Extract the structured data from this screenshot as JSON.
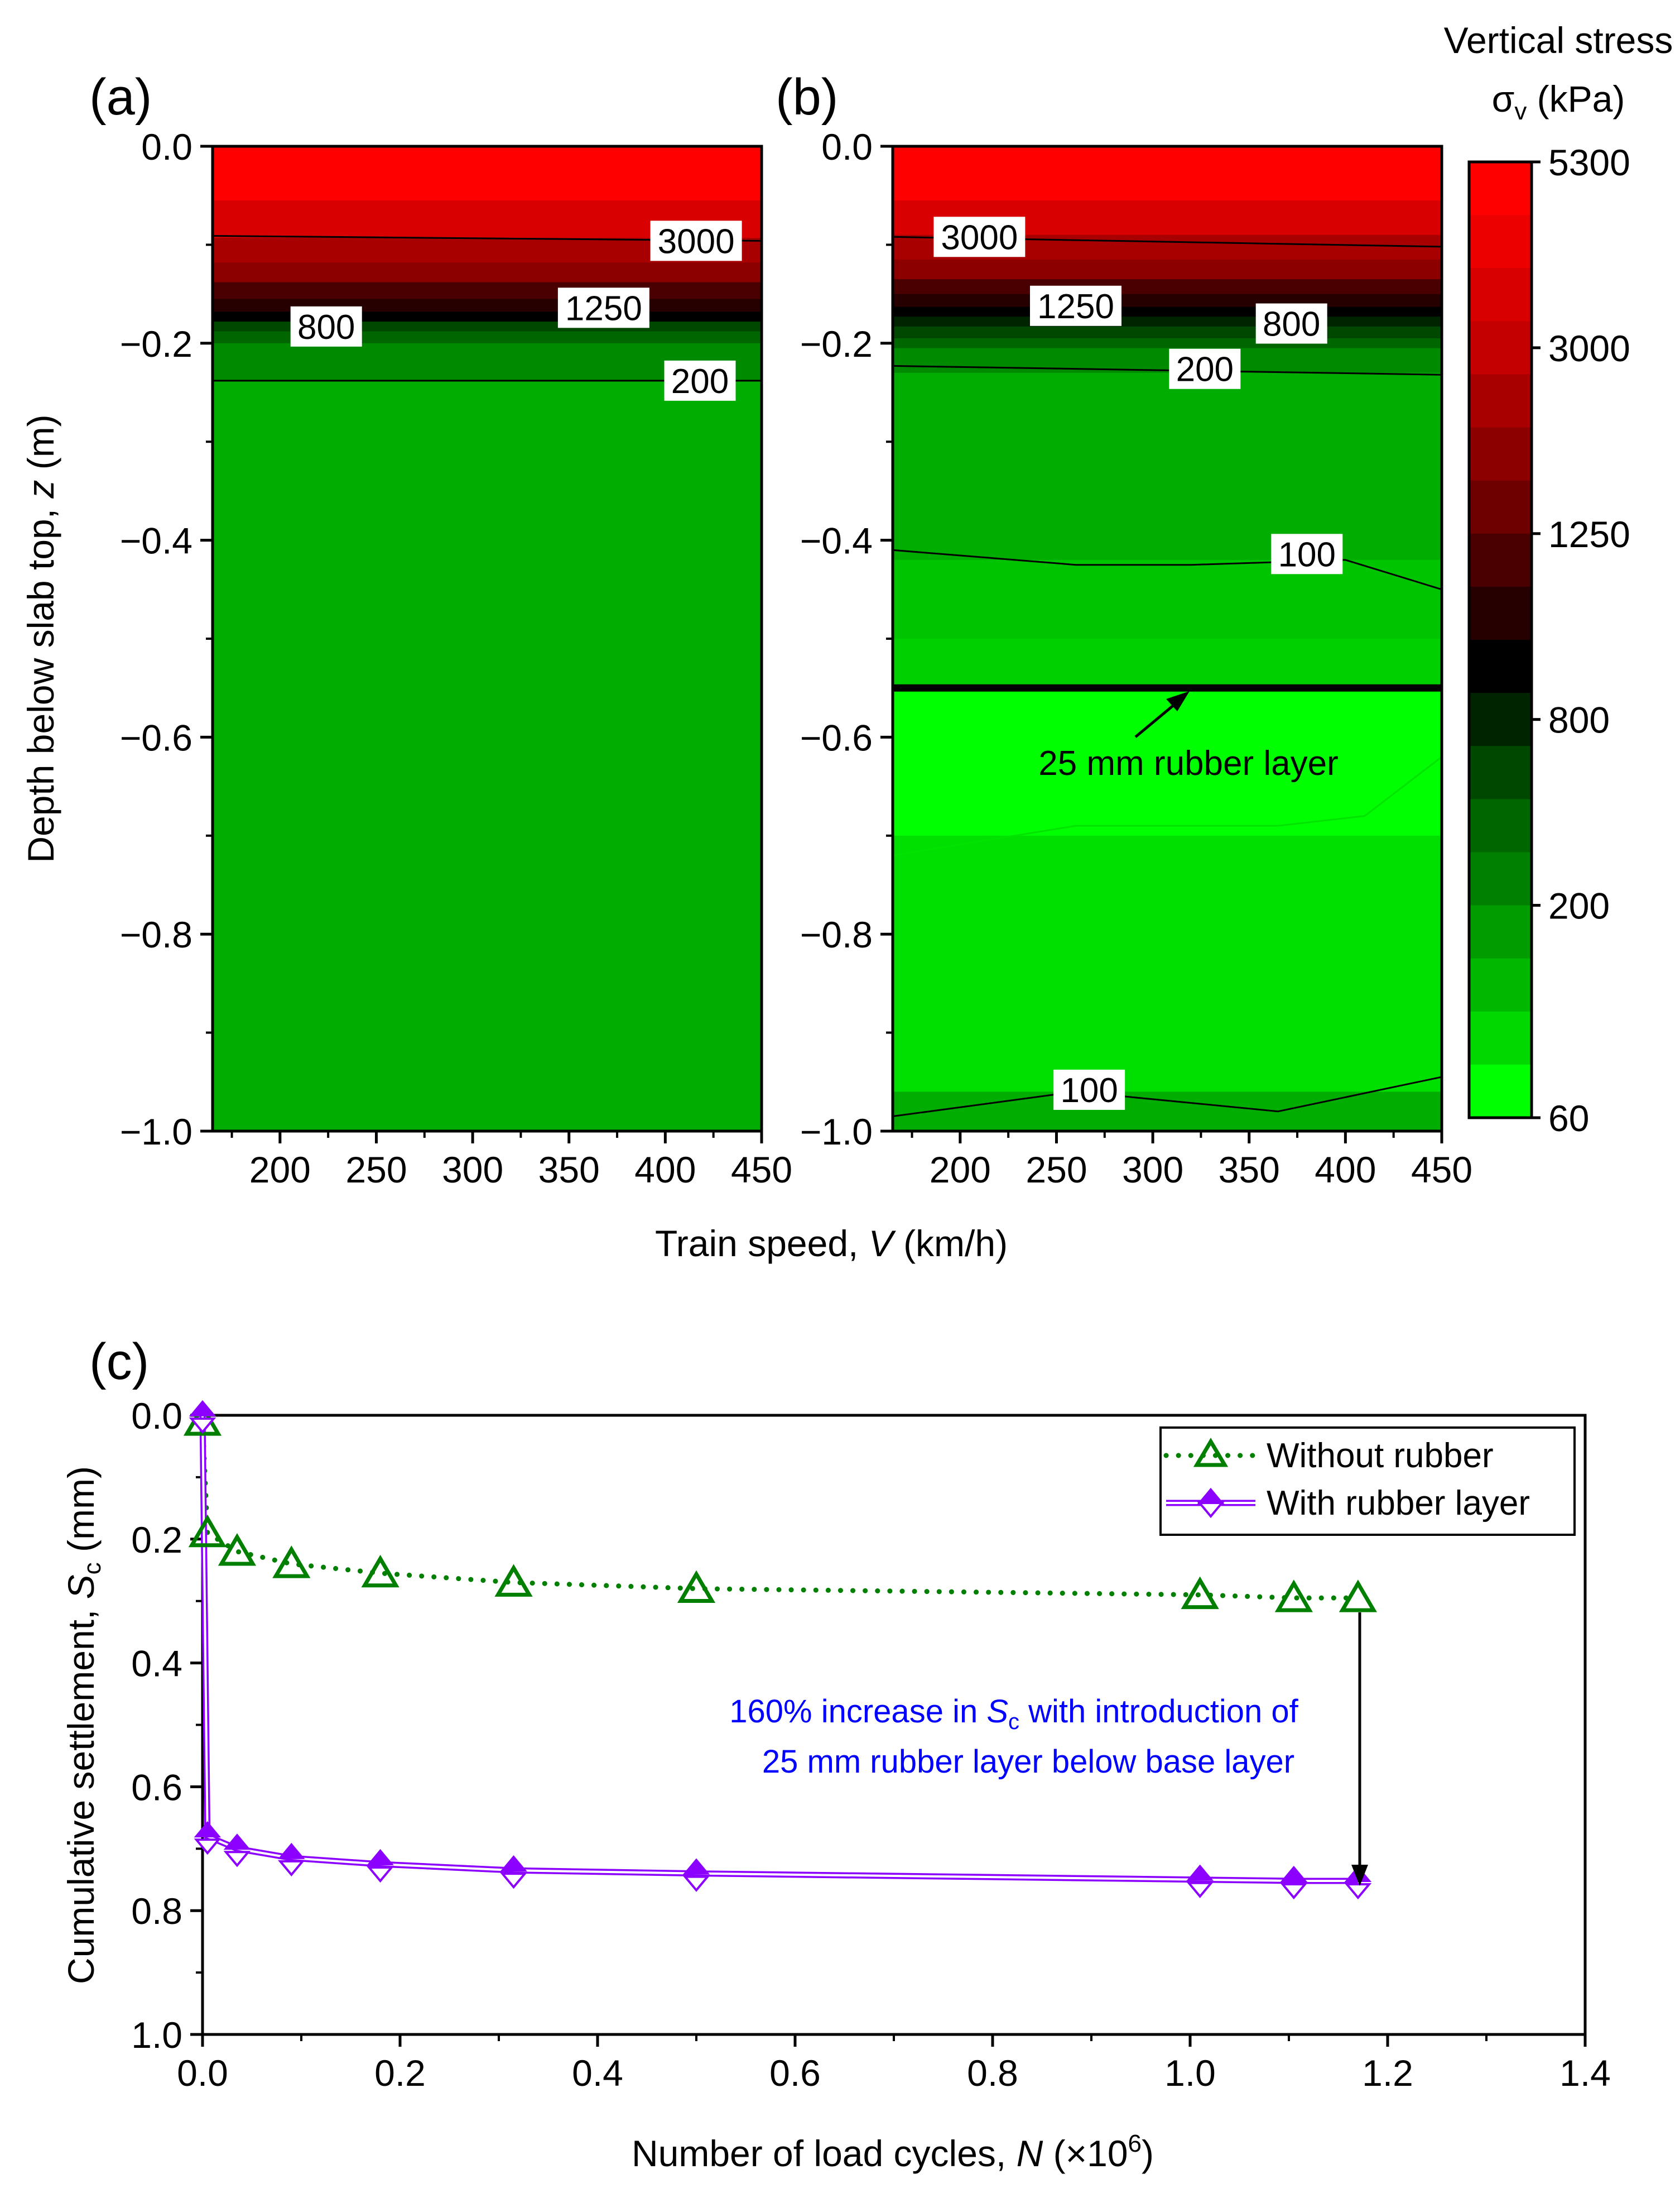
{
  "chart_data": [
    {
      "type": "heatmap",
      "panel_label": "(a)",
      "x": [
        165,
        200,
        250,
        300,
        350,
        400,
        450
      ],
      "xlim": [
        165,
        450
      ],
      "ylim": [
        -1.0,
        0.0
      ],
      "xticks": [
        "200",
        "250",
        "300",
        "350",
        "400",
        "450"
      ],
      "yticks": [
        "0.0",
        "−0.2",
        "−0.4",
        "−0.6",
        "−0.8",
        "−1.0"
      ],
      "ylabel_prefix": "Depth below slab top, ",
      "ylabel_var": "z",
      "ylabel_unit": " (m)",
      "contour_labels": [
        {
          "text": "3000",
          "x": 416,
          "z": -0.096
        },
        {
          "text": "1250",
          "x": 368,
          "z": -0.164
        },
        {
          "text": "800",
          "x": 224,
          "z": -0.183
        },
        {
          "text": "200",
          "x": 418,
          "z": -0.238
        }
      ]
    },
    {
      "type": "heatmap",
      "panel_label": "(b)",
      "x": [
        165,
        200,
        250,
        300,
        350,
        400,
        450
      ],
      "xlim": [
        165,
        450
      ],
      "ylim": [
        -1.0,
        0.0
      ],
      "xticks": [
        "200",
        "250",
        "300",
        "350",
        "400",
        "450"
      ],
      "yticks": [
        "0.0",
        "−0.2",
        "−0.4",
        "−0.6",
        "−0.8",
        "−1.0"
      ],
      "contour_labels": [
        {
          "text": "3000",
          "x": 210,
          "z": -0.092
        },
        {
          "text": "1250",
          "x": 260,
          "z": -0.162
        },
        {
          "text": "800",
          "x": 372,
          "z": -0.18
        },
        {
          "text": "200",
          "x": 327,
          "z": -0.226
        },
        {
          "text": "100",
          "x": 380,
          "z": -0.414
        },
        {
          "text": "100",
          "x": 267,
          "z": -0.958
        }
      ],
      "rubber_layer_depth": -0.55,
      "annotation": "25 mm rubber layer"
    }
  ],
  "shared_xlabel_prefix": "Train speed, ",
  "shared_xlabel_var": "V",
  "shared_xlabel_unit": " (km/h)",
  "colorbar": {
    "title_line1": "Vertical stress",
    "title_symbol": "σ",
    "title_subscript": "v",
    "title_unit": " (kPa)",
    "tick_labels": [
      "5300",
      "3000",
      "1250",
      "800",
      "200",
      "60"
    ],
    "level_colors": [
      "#ff0000",
      "#ec0000",
      "#d80000",
      "#c40000",
      "#a80000",
      "#8c0000",
      "#6e0000",
      "#4a0000",
      "#260000",
      "#000000",
      "#002400",
      "#004800",
      "#006600",
      "#008000",
      "#009c00",
      "#00b800",
      "#00d800",
      "#00ff00"
    ]
  },
  "colors": {
    "bg_green": "#00ad00",
    "dark_green": "#008a00",
    "light_green": "#00d000",
    "bright_green": "#00ff00",
    "rubber_series": "#8b00ff",
    "no_rubber_series": "#007f00",
    "annotation_text": "#0000ff"
  },
  "chart_c": {
    "type": "line",
    "panel_label": "(c)",
    "xlim": [
      0,
      1.4
    ],
    "ylim": [
      1.0,
      0.0
    ],
    "xticks": [
      "0.0",
      "0.2",
      "0.4",
      "0.6",
      "0.8",
      "1.0",
      "1.2",
      "1.4"
    ],
    "yticks": [
      "0.0",
      "0.2",
      "0.4",
      "0.6",
      "0.8",
      "1.0"
    ],
    "xlabel_prefix": "Number of load cycles, ",
    "xlabel_var": "N",
    "xlabel_unit": " (×10",
    "xlabel_exp": "6",
    "xlabel_close": ")",
    "ylabel_prefix": "Cumulative settlement, ",
    "ylabel_var": "S",
    "ylabel_sub": "c",
    "ylabel_unit": " (mm)",
    "series": [
      {
        "name": "Without rubber",
        "x": [
          0.0,
          0.005,
          0.035,
          0.09,
          0.18,
          0.315,
          0.5,
          1.01,
          1.105,
          1.17
        ],
        "y": [
          0.01,
          0.19,
          0.22,
          0.24,
          0.255,
          0.27,
          0.28,
          0.29,
          0.295,
          0.295
        ]
      },
      {
        "name": "With rubber layer",
        "x": [
          0.0,
          0.005,
          0.035,
          0.09,
          0.18,
          0.315,
          0.5,
          1.01,
          1.105,
          1.17
        ],
        "y": [
          0.0,
          0.68,
          0.7,
          0.715,
          0.725,
          0.735,
          0.74,
          0.75,
          0.752,
          0.752
        ]
      }
    ],
    "annotation_line1_prefix": "160% increase in ",
    "annotation_var": "S",
    "annotation_sub": "c",
    "annotation_line1_suffix": " with introduction of",
    "annotation_line2": "25 mm rubber layer below base layer"
  }
}
